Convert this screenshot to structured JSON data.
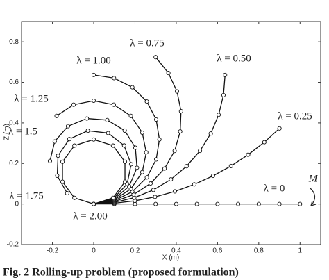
{
  "chart_data": {
    "type": "line",
    "xlabel": "X (m)",
    "ylabel": "Z (m)",
    "annotation": "M",
    "caption": "Fig. 2  Rolling-up problem (proposed formulation)",
    "xlim": [
      -0.35,
      1.1
    ],
    "ylim": [
      -0.2,
      0.9
    ],
    "xticks": [
      -0.2,
      0,
      0.2,
      0.4,
      0.6,
      0.8,
      1
    ],
    "yticks": [
      -0.2,
      0,
      0.2,
      0.4,
      0.6,
      0.8
    ],
    "color": "#111111",
    "series": [
      {
        "name": "λ = 0",
        "x": [
          0,
          0.1,
          0.2,
          0.3,
          0.4,
          0.5,
          0.6,
          0.7,
          0.8,
          0.9,
          1.0
        ],
        "values": [
          0,
          0,
          0,
          0,
          0,
          0,
          0,
          0,
          0,
          0,
          0
        ]
      },
      {
        "name": "λ = 0.25",
        "x": [
          0,
          0.0999,
          0.1992,
          0.2972,
          0.3935,
          0.4872,
          0.578,
          0.6653,
          0.7484,
          0.8269,
          0.9003
        ],
        "values": [
          0,
          0.0039,
          0.0157,
          0.0352,
          0.0623,
          0.0969,
          0.1388,
          0.1876,
          0.2432,
          0.305,
          0.3729
        ]
      },
      {
        "name": "λ = 0.50",
        "x": [
          0,
          0.0996,
          0.1967,
          0.289,
          0.3742,
          0.4502,
          0.515,
          0.5672,
          0.6054,
          0.6288,
          0.6366
        ],
        "values": [
          0,
          0.0078,
          0.0312,
          0.0694,
          0.1216,
          0.1865,
          0.2624,
          0.3476,
          0.4399,
          0.537,
          0.6366
        ]
      },
      {
        "name": "λ = 0.75",
        "x": [
          0,
          0.0991,
          0.1927,
          0.2756,
          0.3433,
          0.3921,
          0.4192,
          0.4231,
          0.4036,
          0.3619,
          0.3001
        ],
        "values": [
          0,
          0.0117,
          0.0463,
          0.1017,
          0.1749,
          0.262,
          0.358,
          0.4577,
          0.5555,
          0.6461,
          0.7245
        ]
      },
      {
        "name": "λ = 1.00",
        "x": [
          0,
          0.0984,
          0.1871,
          0.2575,
          0.3027,
          0.3183,
          0.3027,
          0.2575,
          0.1871,
          0.0984,
          0
        ],
        "values": [
          0,
          0.0156,
          0.0608,
          0.1312,
          0.2199,
          0.3183,
          0.4167,
          0.5054,
          0.5758,
          0.621,
          0.6366
        ]
      },
      {
        "name": "λ = 1.25",
        "x": [
          0,
          0.0974,
          0.18,
          0.2352,
          0.2546,
          0.2352,
          0.18,
          0.0974,
          0,
          -0.0974,
          -0.18
        ],
        "values": [
          0,
          0.0194,
          0.0746,
          0.1572,
          0.2546,
          0.352,
          0.4346,
          0.4898,
          0.5093,
          0.4898,
          0.4346
        ]
      },
      {
        "name": "λ = 1.5",
        "x": [
          0,
          0.0963,
          0.1717,
          0.2096,
          0.2018,
          0.1501,
          0.0656,
          -0.0332,
          -0.1247,
          -0.1891,
          -0.2122
        ],
        "values": [
          0,
          0.0231,
          0.0875,
          0.179,
          0.2778,
          0.3623,
          0.414,
          0.4218,
          0.3839,
          0.3085,
          0.2122
        ]
      },
      {
        "name": "λ = 1.75",
        "x": [
          0,
          0.095,
          0.1621,
          0.1813,
          0.1472,
          0.0696,
          -0.0285,
          -0.1181,
          -0.173,
          -0.1769,
          -0.1286
        ],
        "values": [
          0,
          0.0268,
          0.0993,
          0.1962,
          0.2888,
          0.3499,
          0.3615,
          0.3202,
          0.2381,
          0.1394,
          0.0533
        ]
      },
      {
        "name": "λ = 2.00",
        "x": [
          0,
          0.0936,
          0.1514,
          0.1514,
          0.0936,
          0,
          -0.0936,
          -0.1514,
          -0.1514,
          -0.0936,
          0
        ],
        "values": [
          0,
          0.0304,
          0.11,
          0.2084,
          0.288,
          0.3183,
          0.288,
          0.2084,
          0.11,
          0.0304,
          0
        ]
      }
    ]
  }
}
